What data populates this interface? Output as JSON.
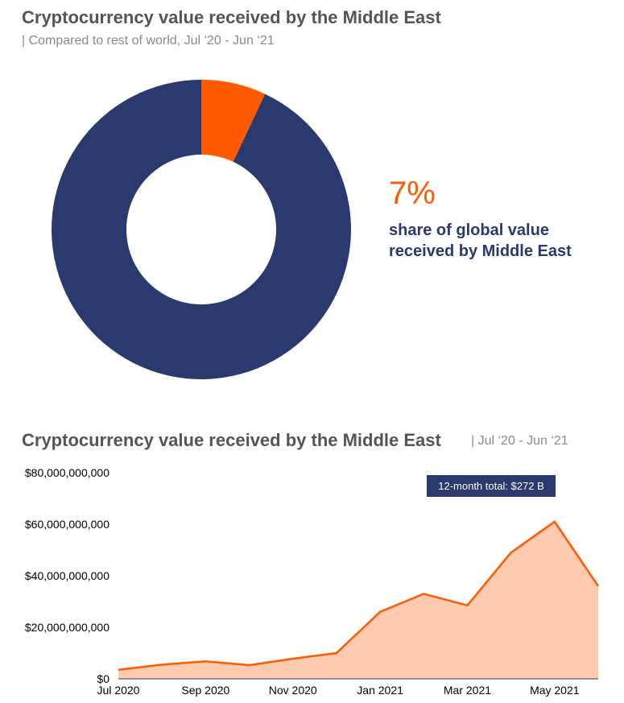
{
  "chart_data": [
    {
      "type": "pie",
      "title": "Cryptocurrency value received by the Middle East",
      "subtitle": "| Compared to rest of world, Jul ‘20 - Jun ‘21",
      "slices": [
        {
          "label": "Middle East",
          "value": 7,
          "color": "#ff5a00"
        },
        {
          "label": "Rest of world",
          "value": 93,
          "color": "#2b3a6e"
        }
      ],
      "annotation_value": "7%",
      "annotation_text": "share of global value received by Middle East"
    },
    {
      "type": "area",
      "title": "Cryptocurrency value received by the Middle East",
      "subtitle": "| Jul ‘20 - Jun ‘21",
      "x": [
        "2020-07",
        "2020-08",
        "2020-09",
        "2020-10",
        "2020-11",
        "2020-12",
        "2021-01",
        "2021-02",
        "2021-03",
        "2021-04",
        "2021-05",
        "2021-06"
      ],
      "x_tick_labels": [
        "Jul 2020",
        "Sep 2020",
        "Nov 2020",
        "Jan 2021",
        "Mar 2021",
        "May 2021"
      ],
      "y_tick_labels": [
        "$80,000,000,000",
        "$60,000,000,000",
        "$40,000,000,000",
        "$20,000,000,000",
        "$0"
      ],
      "series": [
        {
          "values": [
            3500000000,
            5500000000,
            6800000000,
            5300000000,
            7800000000,
            10000000000,
            26000000000,
            33000000000,
            28500000000,
            49000000000,
            61000000000,
            36000000000
          ]
        }
      ],
      "ylim": [
        0,
        80000000000
      ],
      "line_color": "#ff5a00",
      "fill_color": "#ffcbb0",
      "annotation": "12-month total: $272 B"
    }
  ]
}
